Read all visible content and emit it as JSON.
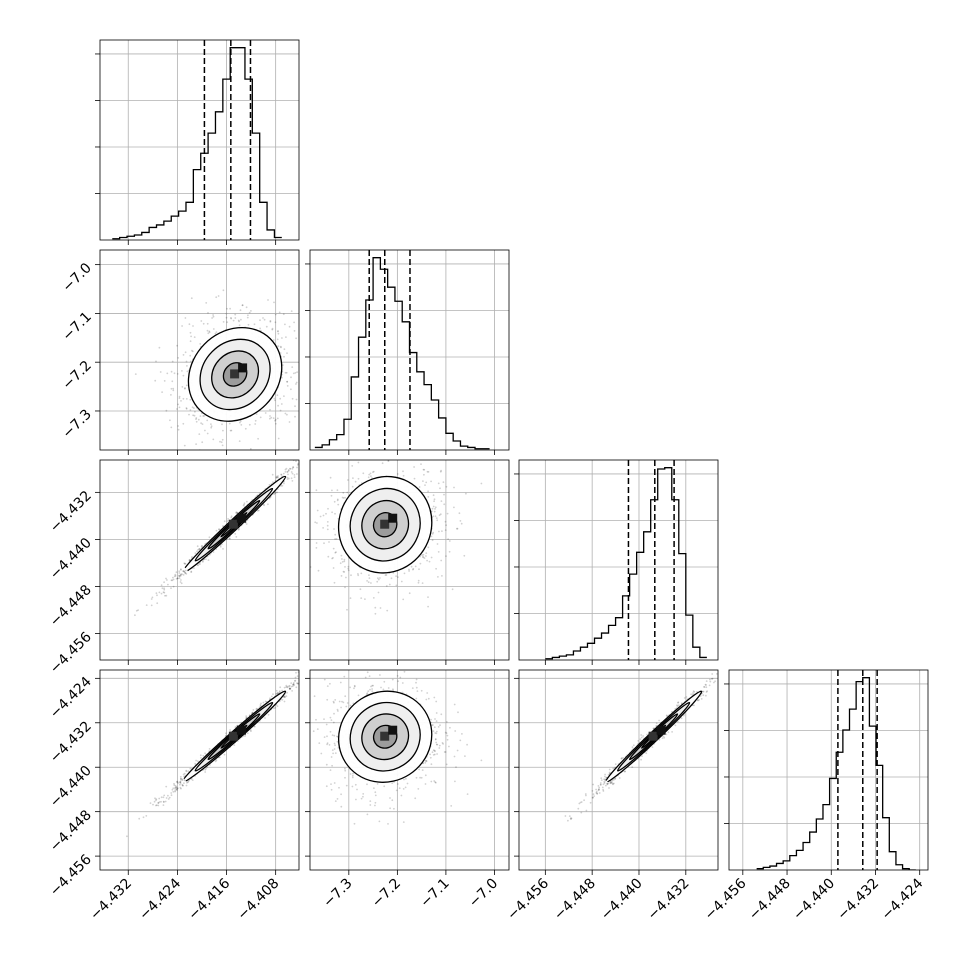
{
  "figure": {
    "background": "#ffffff",
    "line_color": "#000000",
    "grid_color": "#b0b0b0",
    "scatter_color": "#000000"
  },
  "chart_data": {
    "type": "corner",
    "title": "",
    "grid": true,
    "variables": [
      {
        "label": "",
        "ticks": [
          -4.432,
          -4.424,
          -4.416,
          -4.408
        ],
        "tick_labels": [
          "−4.432",
          "−4.424",
          "−4.416",
          "−4.408"
        ],
        "range": [
          -4.4366,
          -4.4042
        ]
      },
      {
        "label": "",
        "ticks": [
          -7.3,
          -7.2,
          -7.1,
          -7.0
        ],
        "tick_labels": [
          "−7.3",
          "−7.2",
          "−7.1",
          "−7.0"
        ],
        "range": [
          -7.38,
          -6.97
        ]
      },
      {
        "label": "",
        "ticks": [
          -4.456,
          -4.448,
          -4.44,
          -4.432
        ],
        "tick_labels": [
          "−4.456",
          "−4.448",
          "−4.440",
          "−4.432"
        ],
        "range": [
          -4.4605,
          -4.4265
        ]
      },
      {
        "label": "",
        "ticks": [
          -4.456,
          -4.448,
          -4.44,
          -4.432,
          -4.424
        ],
        "tick_labels": [
          "−4.456",
          "−4.448",
          "−4.440",
          "−4.432",
          "−4.424"
        ],
        "range": [
          -4.4585,
          -4.4225
        ]
      }
    ],
    "row_tick_labels": [
      null,
      [
        "−7.0",
        "−7.1",
        "−7.2",
        "−7.3"
      ],
      [
        "−4.432",
        "−4.440",
        "−4.448",
        "−4.456"
      ],
      [
        "−4.424",
        "−4.432",
        "−4.440",
        "−4.448",
        "−4.456"
      ]
    ],
    "histograms": [
      {
        "variable": 0,
        "quantile_lines": [
          -4.4196,
          -4.4153,
          -4.4121
        ],
        "bin_edges": [
          -4.4346,
          -4.4334,
          -4.4322,
          -4.431,
          -4.4298,
          -4.4286,
          -4.4274,
          -4.4262,
          -4.425,
          -4.4238,
          -4.4226,
          -4.4214,
          -4.4202,
          -4.419,
          -4.4178,
          -4.4166,
          -4.4154,
          -4.4142,
          -4.413,
          -4.4118,
          -4.4106,
          -4.4094,
          -4.4082,
          -4.407
        ],
        "counts": [
          1,
          2,
          3,
          4,
          6,
          10,
          12,
          15,
          19,
          23,
          30,
          56,
          69,
          85,
          102,
          128,
          153,
          153,
          128,
          85,
          30,
          8,
          2
        ]
      },
      {
        "variable": 1,
        "quantile_lines": [
          -7.258,
          -7.226,
          -7.174
        ],
        "bin_edges": [
          -7.37,
          -7.355,
          -7.34,
          -7.325,
          -7.31,
          -7.295,
          -7.28,
          -7.265,
          -7.25,
          -7.235,
          -7.22,
          -7.205,
          -7.19,
          -7.175,
          -7.16,
          -7.145,
          -7.13,
          -7.115,
          -7.1,
          -7.085,
          -7.07,
          -7.055,
          -7.04,
          -7.025,
          -7.01
        ],
        "counts": [
          2,
          4,
          8,
          12,
          24,
          57,
          88,
          117,
          150,
          141,
          127,
          116,
          100,
          76,
          61,
          51,
          39,
          25,
          13,
          7,
          3,
          2,
          1,
          1
        ]
      },
      {
        "variable": 2,
        "quantile_lines": [
          -4.4418,
          -4.4373,
          -4.434
        ],
        "bin_edges": [
          -4.456,
          -4.4548,
          -4.4536,
          -4.4524,
          -4.4512,
          -4.45,
          -4.4488,
          -4.4476,
          -4.4464,
          -4.4452,
          -4.444,
          -4.4428,
          -4.4416,
          -4.4404,
          -4.4392,
          -4.438,
          -4.4368,
          -4.4356,
          -4.4344,
          -4.4332,
          -4.432,
          -4.4308,
          -4.4296,
          -4.4284
        ],
        "counts": [
          1,
          2,
          3,
          4,
          7,
          10,
          13,
          17,
          21,
          27,
          33,
          50,
          67,
          84,
          100,
          125,
          149,
          150,
          125,
          83,
          35,
          10,
          2
        ]
      },
      {
        "variable": 3,
        "quantile_lines": [
          -4.4388,
          -4.4343,
          -4.4317
        ],
        "bin_edges": [
          -4.4535,
          -4.4523,
          -4.4511,
          -4.4499,
          -4.4487,
          -4.4475,
          -4.4463,
          -4.4451,
          -4.4439,
          -4.4427,
          -4.4415,
          -4.4403,
          -4.4391,
          -4.4379,
          -4.4367,
          -4.4355,
          -4.4343,
          -4.4331,
          -4.4319,
          -4.4307,
          -4.4295,
          -4.4283,
          -4.4271,
          -4.4259,
          -4.4247
        ],
        "counts": [
          1,
          2,
          3,
          5,
          7,
          11,
          15,
          21,
          29,
          39,
          50,
          70,
          90,
          107,
          123,
          144,
          147,
          110,
          80,
          40,
          14,
          4,
          1,
          0
        ]
      }
    ],
    "scatter_panels": [
      {
        "x": 0,
        "y": 1,
        "mean": [
          -4.4146,
          -7.225
        ],
        "sd": [
          0.0038,
          0.048
        ],
        "corr": 0.15
      },
      {
        "x": 0,
        "y": 2,
        "mean": [
          -4.4148,
          -4.4375
        ],
        "sd": [
          0.0042,
          0.0041
        ],
        "corr": 0.99
      },
      {
        "x": 1,
        "y": 2,
        "mean": [
          -7.225,
          -4.4375
        ],
        "sd": [
          0.048,
          0.0041
        ],
        "corr": 0.05
      },
      {
        "x": 0,
        "y": 3,
        "mean": [
          -4.4148,
          -4.4345
        ],
        "sd": [
          0.0042,
          0.0041
        ],
        "corr": 0.99
      },
      {
        "x": 1,
        "y": 3,
        "mean": [
          -7.225,
          -4.4345
        ],
        "sd": [
          0.048,
          0.0041
        ],
        "corr": 0.05
      },
      {
        "x": 2,
        "y": 3,
        "mean": [
          -4.4375,
          -4.4345
        ],
        "sd": [
          0.0041,
          0.0041
        ],
        "corr": 0.99
      }
    ],
    "contour_sigma_levels": [
      0.5,
      1.0,
      1.5,
      2.0
    ]
  }
}
